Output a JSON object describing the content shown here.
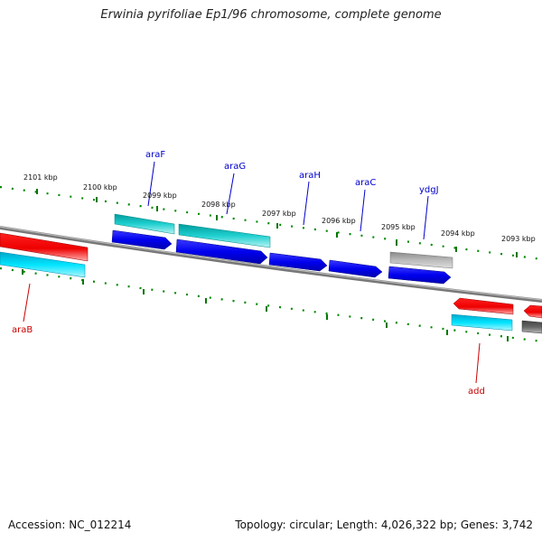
{
  "title": "Erwinia pyrifoliae Ep1/96 chromosome, complete genome",
  "accession_text": "Accession: NC_012214",
  "summary_text": "Topology: circular; Length: 4,026,322 bp; Genes: 3,742",
  "ticks": [
    {
      "label": "2101 kbp"
    },
    {
      "label": "2100 kbp"
    },
    {
      "label": "2099 kbp"
    },
    {
      "label": "2098 kbp"
    },
    {
      "label": "2097 kbp"
    },
    {
      "label": "2096 kbp"
    },
    {
      "label": "2095 kbp"
    },
    {
      "label": "2094 kbp"
    },
    {
      "label": "2093 kbp"
    }
  ],
  "gene_labels": [
    {
      "name": "araF",
      "color": "#0000cc"
    },
    {
      "name": "araG",
      "color": "#0000cc"
    },
    {
      "name": "araH",
      "color": "#0000cc"
    },
    {
      "name": "araC",
      "color": "#0000cc"
    },
    {
      "name": "ydgJ",
      "color": "#0000cc"
    },
    {
      "name": "araB",
      "color": "#cc0000"
    },
    {
      "name": "add",
      "color": "#cc0000"
    }
  ],
  "colors": {
    "forward_cds": "#0000ee",
    "forward_rna": "#00c8c8",
    "reverse_cds": "#ee0000",
    "reverse_rna": "#00e4ff",
    "pseudo_gene": "#aaaaaa",
    "other_gene": "#555555",
    "backbone": "#808080",
    "tick": "#007700"
  }
}
